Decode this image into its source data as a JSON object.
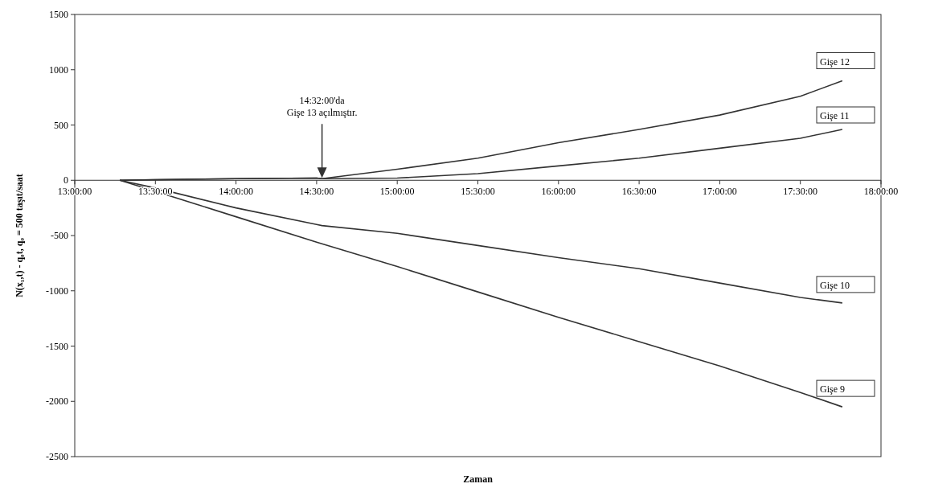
{
  "chart_data": {
    "type": "line",
    "xlabel": "Zaman",
    "ylabel": "N(x₁,t) - q₀t, q₀ = 500 taşıt/saat",
    "xlim": [
      13,
      18
    ],
    "xticks": [
      {
        "value": 13,
        "label": "13:00:00"
      },
      {
        "value": 13.5,
        "label": "13:30:00"
      },
      {
        "value": 14,
        "label": "14:00:00"
      },
      {
        "value": 14.5,
        "label": "14:30:00"
      },
      {
        "value": 15,
        "label": "15:00:00"
      },
      {
        "value": 15.5,
        "label": "15:30:00"
      },
      {
        "value": 16,
        "label": "16:00:00"
      },
      {
        "value": 16.5,
        "label": "16:30:00"
      },
      {
        "value": 17,
        "label": "17:00:00"
      },
      {
        "value": 17.5,
        "label": "17:30:00"
      },
      {
        "value": 18,
        "label": "18:00:00"
      }
    ],
    "ylim": [
      -2500,
      1500
    ],
    "yticks": [
      -2500,
      -2000,
      -1500,
      -1000,
      -500,
      0,
      500,
      1000,
      1500
    ],
    "grid": false,
    "legend": false,
    "marker": "none",
    "line_style": "solid",
    "x": [
      13.28,
      13.5,
      14,
      14.5,
      14.533,
      15,
      15.5,
      16,
      16.5,
      17,
      17.5,
      17.76
    ],
    "series": [
      {
        "name": "Gişe 12",
        "color": "#333333",
        "values": [
          0,
          5,
          15,
          20,
          15,
          100,
          200,
          340,
          460,
          590,
          760,
          900
        ]
      },
      {
        "name": "Gişe 11",
        "color": "#333333",
        "values": [
          0,
          5,
          15,
          20,
          15,
          20,
          60,
          130,
          200,
          290,
          380,
          460
        ]
      },
      {
        "name": "Gişe 10",
        "color": "#333333",
        "values": [
          0,
          -70,
          -250,
          -400,
          -410,
          -480,
          -590,
          -700,
          -800,
          -930,
          -1060,
          -1110
        ]
      },
      {
        "name": "Gişe 9",
        "color": "#333333",
        "values": [
          0,
          -100,
          -330,
          -560,
          -575,
          -780,
          -1010,
          -1240,
          -1460,
          -1680,
          -1920,
          -2050
        ]
      }
    ],
    "annotations": [
      "14:32:00'da\nGişe 13 açılmıştır."
    ]
  }
}
